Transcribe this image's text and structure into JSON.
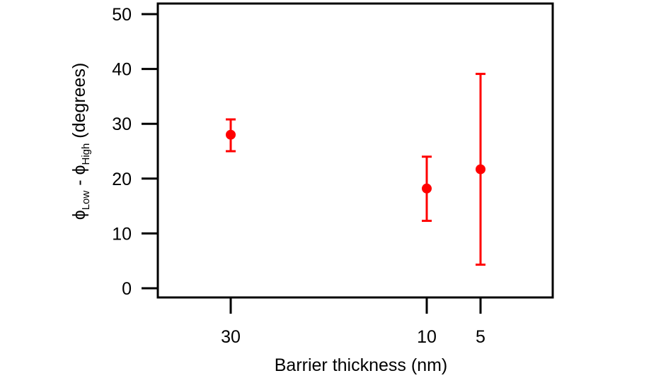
{
  "chart_data": {
    "type": "scatter",
    "title": "",
    "xlabel": "Barrier thickness (nm)",
    "ylabel": {
      "symbol1": "ϕ",
      "sub1": "Low",
      "separator": " - ",
      "symbol2": "ϕ",
      "sub2": "High",
      "unit": " (degrees)"
    },
    "x_ticks": [
      "30",
      "10",
      "5"
    ],
    "y_ticks": [
      0,
      10,
      20,
      30,
      40,
      50
    ],
    "ylim": [
      -1.5,
      52
    ],
    "grid": false,
    "legend": "none",
    "series": [
      {
        "color": "#ff0000",
        "points": [
          {
            "x": "30",
            "y": 28.0,
            "y_low": 25.0,
            "y_high": 30.8
          },
          {
            "x": "10",
            "y": 18.2,
            "y_low": 12.3,
            "y_high": 24.0
          },
          {
            "x": "5",
            "y": 21.7,
            "y_low": 4.3,
            "y_high": 39.1
          }
        ]
      }
    ]
  }
}
